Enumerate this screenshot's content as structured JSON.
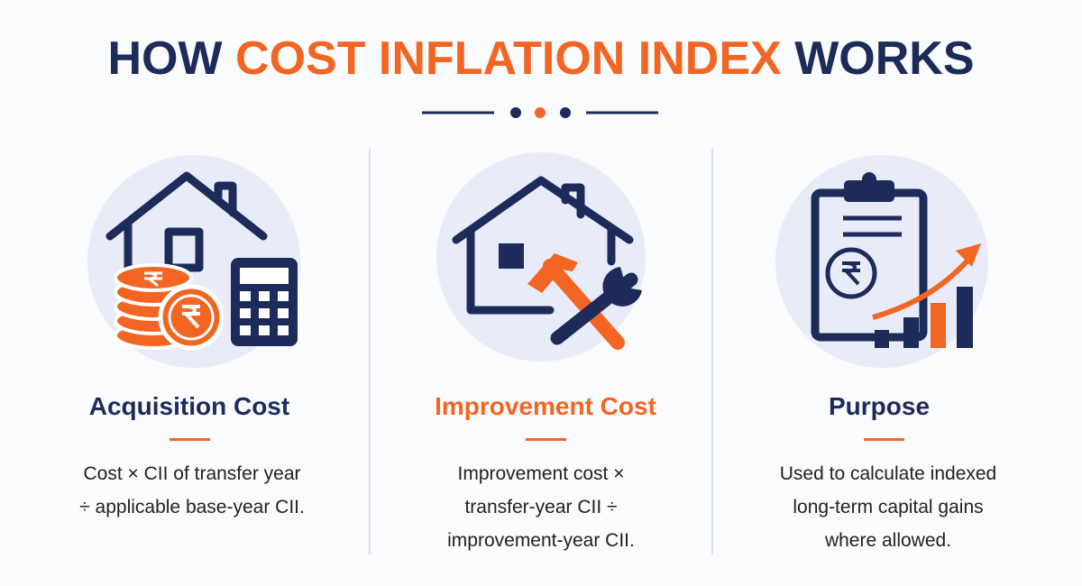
{
  "header": {
    "title": [
      "HOW",
      "COST INFLATION INDEX",
      "WORKS"
    ]
  },
  "columns": [
    {
      "title": "Acquisition Cost",
      "lines": [
        "Cost × CII of transfer year",
        "÷ applicable base-year CII."
      ]
    },
    {
      "title": "Improvement Cost",
      "lines": [
        "Improvement cost ×",
        "transfer-year CII ÷",
        "improvement-year CII."
      ]
    },
    {
      "title": "Purpose",
      "lines": [
        "Used to calculate indexed",
        "long-term capital gains",
        "where allowed."
      ]
    }
  ]
}
